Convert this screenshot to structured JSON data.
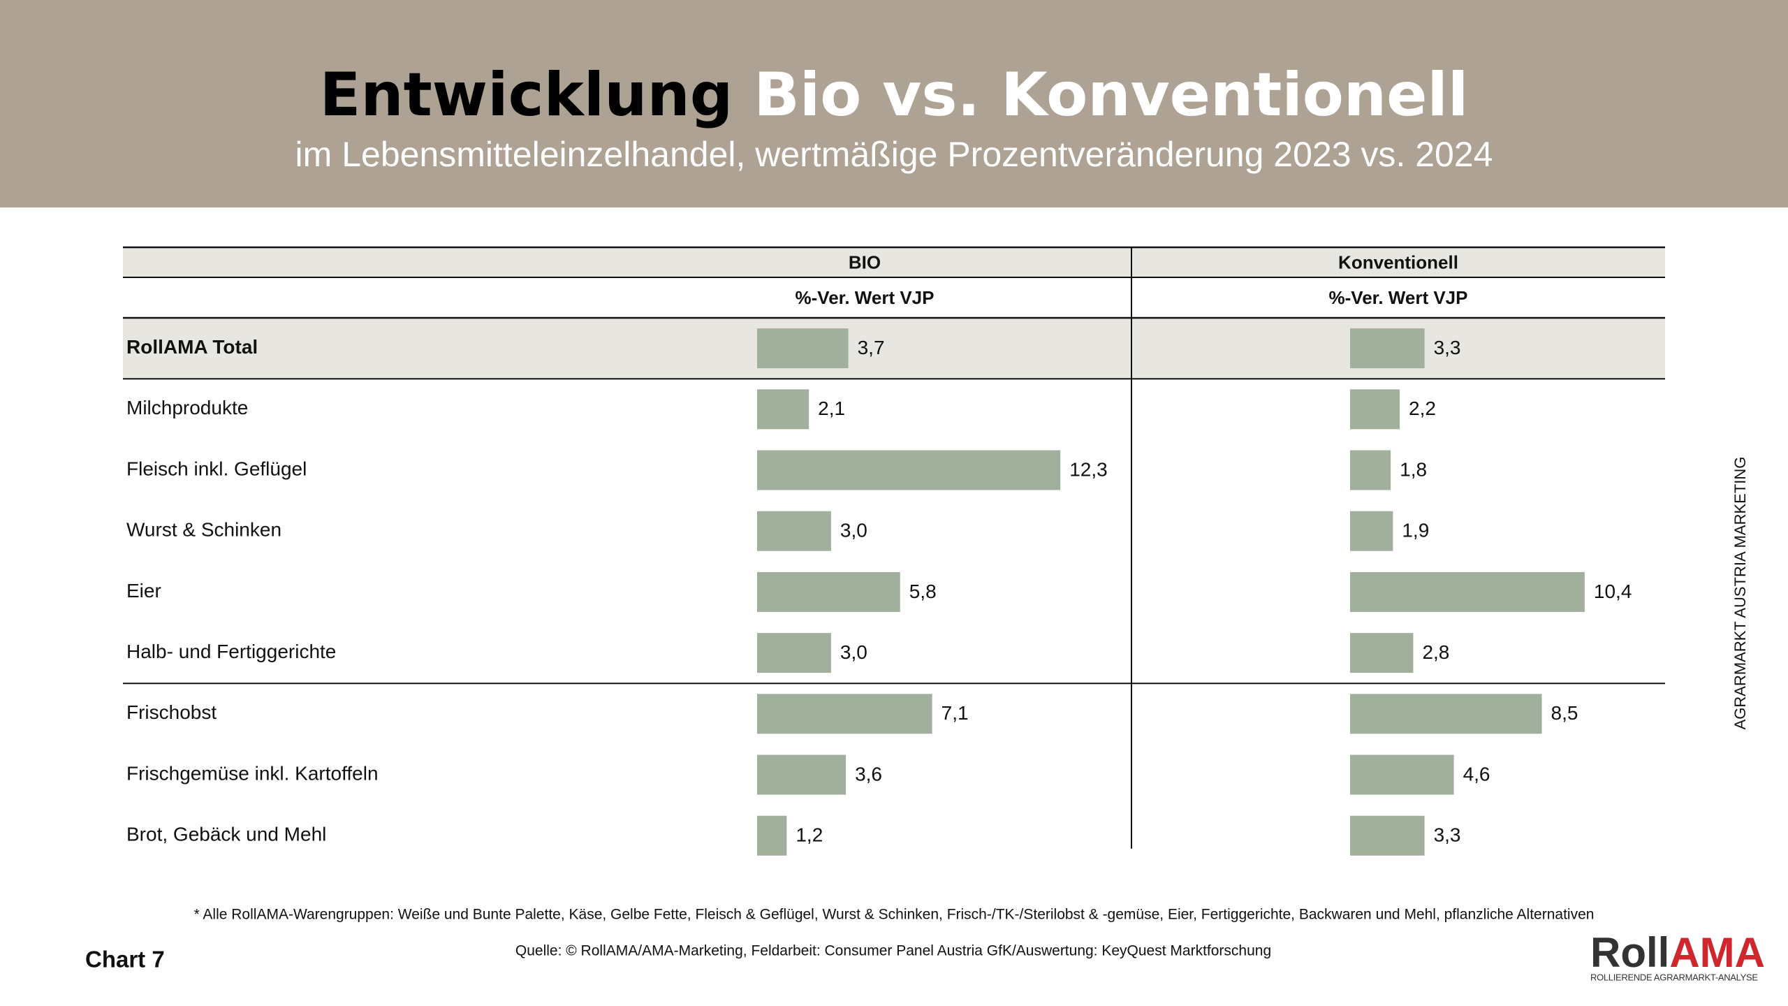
{
  "header": {
    "title_parts": [
      "Entwicklung",
      "Bio vs.",
      "Konventionell"
    ],
    "subtitle": "im Lebensmitteleinzelhandel, wertmäßige Prozentveränderung 2023 vs. 2024"
  },
  "chart_data": {
    "type": "bar",
    "categories": [
      "RollAMA Total",
      "Milchprodukte",
      "Fleisch inkl. Geflügel",
      "Wurst & Schinken",
      "Eier",
      "Halb- und Fertiggerichte",
      "Frischobst",
      "Frischgemüse inkl. Kartoffeln",
      "Brot, Gebäck und Mehl"
    ],
    "series": [
      {
        "name": "BIO",
        "column_label": "%-Ver. Wert VJP",
        "color": "#a0b09d",
        "values": [
          3.7,
          2.1,
          12.3,
          3.0,
          5.8,
          3.0,
          7.1,
          3.6,
          1.2
        ],
        "value_labels": [
          "3,7",
          "2,1",
          "12,3",
          "3,0",
          "5,8",
          "3,0",
          "7,1",
          "3,6",
          "1,2"
        ]
      },
      {
        "name": "Konventionell",
        "column_label": "%-Ver. Wert VJP",
        "color": "#a0b09d",
        "values": [
          3.3,
          2.2,
          1.8,
          1.9,
          10.4,
          2.8,
          8.5,
          4.6,
          3.3
        ],
        "value_labels": [
          "3,3",
          "2,2",
          "1,8",
          "1,9",
          "10,4",
          "2,8",
          "8,5",
          "4,6",
          "3,3"
        ]
      }
    ]
  },
  "footnote": "* Alle RollAMA-Warengruppen: Weiße und Bunte Palette, Käse, Gelbe Fette, Fleisch & Geflügel, Wurst & Schinken, Frisch-/TK-/Sterilobst & -gemüse, Eier, Fertiggerichte, Backwaren und Mehl, pflanzliche Alternativen",
  "source": "Quelle: © RollAMA/AMA-Marketing, Feldarbeit: Consumer Panel Austria GfK/Auswertung: KeyQuest Marktforschung",
  "chart_label": "Chart 7",
  "side_label": "AGRARMARKT AUSTRIA MARKETING",
  "logo": {
    "parts": [
      "Roll",
      "AMA"
    ],
    "tagline": "ROLLIERENDE AGRARMARKT-ANALYSE"
  }
}
